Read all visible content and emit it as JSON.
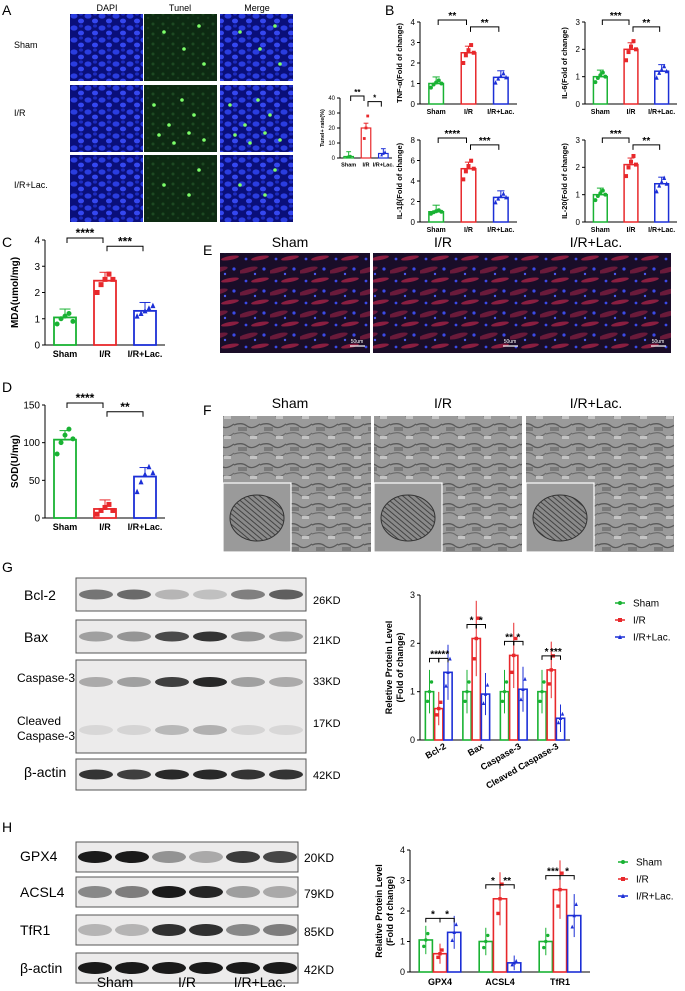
{
  "panels": {
    "A": {
      "label": "A",
      "columns": [
        "DAPI",
        "Tunel",
        "Merge"
      ],
      "rows": [
        "Sham",
        "I/R",
        "I/R+Lac."
      ],
      "chart_data": {
        "type": "bar",
        "ylabel": "Tunel+ rate(%)",
        "categories": [
          "Sham",
          "I/R",
          "I/R+Lac."
        ],
        "values": [
          1,
          20,
          3
        ],
        "ylim": [
          0,
          40
        ],
        "yticks": [
          "0",
          "10",
          "20",
          "30",
          "40"
        ],
        "points": [
          [
            0.5,
            1,
            1.2
          ],
          [
            13,
            20,
            28
          ],
          [
            2,
            3,
            4
          ]
        ],
        "sig": [
          "**",
          "*"
        ]
      }
    },
    "B": {
      "label": "B",
      "charts": [
        {
          "ylabel": "TNF-α(Fold of change)",
          "categories": [
            "Sham",
            "I/R",
            "I/R+Lac."
          ],
          "values": [
            1.0,
            2.5,
            1.3
          ],
          "ylim": [
            0,
            4
          ],
          "yticks": [
            "0",
            "1",
            "2",
            "3",
            "4"
          ],
          "sig": [
            "**",
            "**"
          ]
        },
        {
          "ylabel": "IL-6(Fold of change)",
          "categories": [
            "Sham",
            "I/R",
            "I/R+Lac."
          ],
          "values": [
            1.0,
            2.0,
            1.2
          ],
          "ylim": [
            0,
            3
          ],
          "yticks": [
            "0",
            "1",
            "2",
            "3"
          ],
          "sig": [
            "***",
            "**"
          ]
        },
        {
          "ylabel": "IL-1β(Fold of change)",
          "categories": [
            "Sham",
            "I/R",
            "I/R+Lac."
          ],
          "values": [
            1.0,
            5.2,
            2.4
          ],
          "ylim": [
            0,
            8
          ],
          "yticks": [
            "0",
            "2",
            "4",
            "6",
            "8"
          ],
          "sig": [
            "****",
            "***"
          ]
        },
        {
          "ylabel": "IL-20(Fold of change)",
          "categories": [
            "Sham",
            "I/R",
            "I/R+Lac."
          ],
          "values": [
            1.0,
            2.1,
            1.4
          ],
          "ylim": [
            0,
            3
          ],
          "yticks": [
            "0",
            "1",
            "2",
            "3"
          ],
          "sig": [
            "***",
            "**"
          ]
        }
      ]
    },
    "C": {
      "label": "C",
      "chart_data": {
        "type": "bar",
        "ylabel": "MDA(umol/mg)",
        "categories": [
          "Sham",
          "I/R",
          "I/R+Lac."
        ],
        "values": [
          1.05,
          2.45,
          1.3
        ],
        "ylim": [
          0,
          4
        ],
        "yticks": [
          "0",
          "1",
          "2",
          "3",
          "4"
        ],
        "points": [
          [
            0.8,
            1.0,
            1.1,
            1.2,
            0.9
          ],
          [
            2.0,
            2.3,
            2.5,
            2.7,
            2.5
          ],
          [
            1.1,
            1.2,
            1.3,
            1.4,
            1.5
          ]
        ],
        "sig": [
          "****",
          "***"
        ]
      }
    },
    "D": {
      "label": "D",
      "chart_data": {
        "type": "bar",
        "ylabel": "SOD(U/mg)",
        "categories": [
          "Sham",
          "I/R",
          "I/R+Lac."
        ],
        "values": [
          104,
          12,
          55
        ],
        "ylim": [
          0,
          150
        ],
        "yticks": [
          "0",
          "50",
          "100",
          "150"
        ],
        "points": [
          [
            85,
            100,
            110,
            118,
            105
          ],
          [
            5,
            10,
            14,
            18,
            10
          ],
          [
            35,
            48,
            58,
            68,
            60
          ]
        ],
        "sig": [
          "****",
          "**"
        ]
      }
    },
    "E": {
      "label": "E",
      "titles": [
        "Sham",
        "I/R",
        "I/R+Lac."
      ],
      "scale": "50um"
    },
    "F": {
      "label": "F",
      "titles": [
        "Sham",
        "I/R",
        "I/R+Lac."
      ]
    },
    "G": {
      "label": "G",
      "blot_labels": [
        "Bcl-2",
        "Bax",
        "Caspase-3",
        "Cleaved\nCaspase-3",
        "β-actin"
      ],
      "blot_labels_flat": [
        "Bcl-2",
        "Bax",
        "Caspase-3",
        "Cleaved",
        "Caspase-3",
        "β-actin"
      ],
      "kd": [
        "26KD",
        "21KD",
        "33KD",
        "17KD",
        "42KD"
      ],
      "chart_data": {
        "type": "bar",
        "ylabel": "Reletive Protein Level",
        "ylabel2": "(Fold of change)",
        "categories": [
          "Bcl-2",
          "Bax",
          "Caspase-3",
          "Cleaved Caspase-3"
        ],
        "series": [
          {
            "name": "Sham",
            "values": [
              1.0,
              1.0,
              1.0,
              1.0
            ],
            "color": "#19b233"
          },
          {
            "name": "I/R",
            "values": [
              0.65,
              2.1,
              1.75,
              1.45
            ],
            "color": "#e8282b"
          },
          {
            "name": "I/R+Lac.",
            "values": [
              1.4,
              0.95,
              1.05,
              0.45
            ],
            "color": "#1c2fd6"
          }
        ],
        "ylim": [
          0,
          3
        ],
        "yticks": [
          "0",
          "1",
          "2",
          "3"
        ],
        "sig": [
          [
            "**",
            "***"
          ],
          [
            "*",
            "*"
          ],
          [
            "**",
            "*"
          ],
          [
            "*",
            "***"
          ]
        ]
      }
    },
    "H": {
      "label": "H",
      "blot_labels": [
        "GPX4",
        "ACSL4",
        "TfR1",
        "β-actin"
      ],
      "kd": [
        "20KD",
        "79KD",
        "85KD",
        "42KD"
      ],
      "groups": [
        "Sham",
        "I/R",
        "I/R+Lac."
      ],
      "chart_data": {
        "type": "bar",
        "ylabel": "Relative Protein Level",
        "ylabel2": "(Fold of change)",
        "categories": [
          "GPX4",
          "ACSL4",
          "TfR1"
        ],
        "series": [
          {
            "name": "Sham",
            "values": [
              1.05,
              1.0,
              1.0
            ],
            "color": "#19b233"
          },
          {
            "name": "I/R",
            "values": [
              0.6,
              2.4,
              2.7
            ],
            "color": "#e8282b"
          },
          {
            "name": "I/R+Lac.",
            "values": [
              1.3,
              0.3,
              1.85
            ],
            "color": "#1c2fd6"
          }
        ],
        "ylim": [
          0,
          4
        ],
        "yticks": [
          "0",
          "1",
          "2",
          "3",
          "4"
        ],
        "sig": [
          [
            "*",
            "*"
          ],
          [
            "*",
            "**"
          ],
          [
            "***",
            "*"
          ]
        ]
      }
    }
  }
}
